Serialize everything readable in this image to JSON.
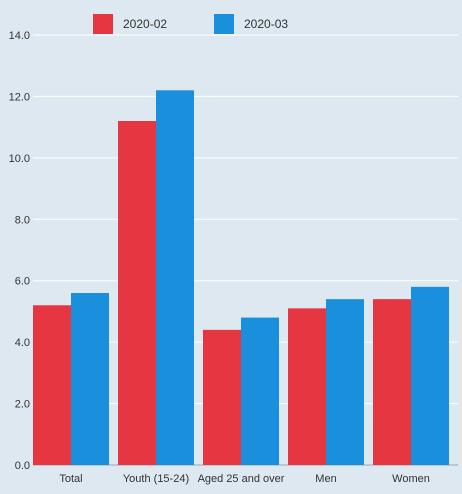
{
  "chart_data": {
    "type": "bar",
    "title": "",
    "xlabel": "",
    "ylabel": "",
    "categories": [
      "Total",
      "Youth (15-24)",
      "Aged 25 and over",
      "Men",
      "Women"
    ],
    "series": [
      {
        "name": "2020-02",
        "color": "#e63641",
        "values": [
          5.2,
          11.2,
          4.4,
          5.1,
          5.4
        ]
      },
      {
        "name": "2020-03",
        "color": "#1a8fdb",
        "values": [
          5.6,
          12.2,
          4.8,
          5.4,
          5.8
        ]
      }
    ],
    "ylim": [
      0,
      14
    ],
    "yticks": [
      "0.0",
      "2.0",
      "4.0",
      "6.0",
      "8.0",
      "10.0",
      "12.0",
      "14.0"
    ],
    "grid": true,
    "legend_position": "top"
  }
}
